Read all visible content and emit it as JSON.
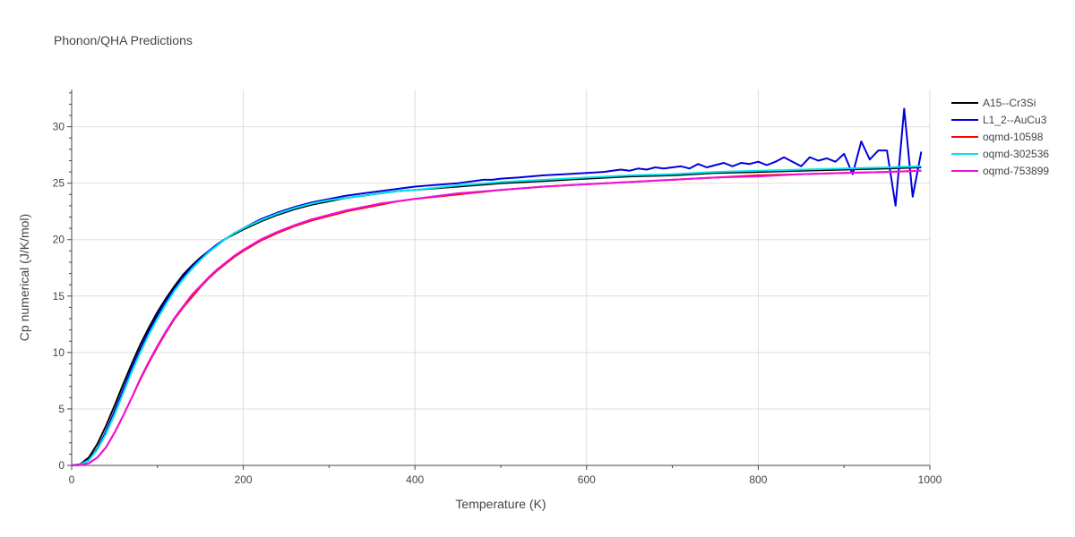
{
  "chart_data": {
    "type": "line",
    "title": "Phonon/QHA Predictions",
    "xlabel": "Temperature (K)",
    "ylabel": "Cp numerical (J/K/mol)",
    "xlim": [
      0,
      1000
    ],
    "ylim": [
      0,
      33.3
    ],
    "xticks": [
      0,
      200,
      400,
      600,
      800,
      1000
    ],
    "yticks": [
      0,
      5,
      10,
      15,
      20,
      25,
      30
    ],
    "grid": true,
    "legend_position": "top-right",
    "series": [
      {
        "name": "A15--Cr3Si",
        "color": "#000000",
        "x": [
          0,
          10,
          20,
          30,
          40,
          50,
          60,
          70,
          80,
          90,
          100,
          110,
          120,
          130,
          140,
          150,
          160,
          170,
          180,
          190,
          200,
          220,
          240,
          260,
          280,
          300,
          320,
          340,
          360,
          380,
          400,
          450,
          500,
          550,
          600,
          650,
          700,
          750,
          800,
          850,
          900,
          950,
          990
        ],
        "y": [
          0,
          0.1,
          0.7,
          1.9,
          3.5,
          5.3,
          7.2,
          9.0,
          10.7,
          12.2,
          13.6,
          14.8,
          15.9,
          16.9,
          17.7,
          18.4,
          19.0,
          19.6,
          20.1,
          20.5,
          20.9,
          21.6,
          22.2,
          22.7,
          23.1,
          23.4,
          23.7,
          23.9,
          24.1,
          24.3,
          24.4,
          24.7,
          25.0,
          25.2,
          25.4,
          25.6,
          25.7,
          25.9,
          26.0,
          26.1,
          26.2,
          26.3,
          26.4
        ]
      },
      {
        "name": "L1_2--AuCu3",
        "color": "#0000dd",
        "x": [
          0,
          10,
          20,
          30,
          40,
          50,
          60,
          70,
          80,
          90,
          100,
          110,
          120,
          130,
          140,
          150,
          160,
          170,
          180,
          190,
          200,
          220,
          240,
          260,
          280,
          300,
          320,
          340,
          360,
          380,
          400,
          450,
          480,
          490,
          500,
          520,
          550,
          600,
          620,
          630,
          640,
          650,
          660,
          670,
          680,
          690,
          700,
          710,
          720,
          730,
          740,
          750,
          760,
          770,
          780,
          790,
          800,
          810,
          820,
          830,
          840,
          850,
          860,
          870,
          880,
          890,
          900,
          910,
          920,
          930,
          940,
          950,
          960,
          970,
          980,
          990
        ],
        "y": [
          0,
          0.08,
          0.5,
          1.5,
          3.0,
          4.8,
          6.7,
          8.6,
          10.3,
          11.9,
          13.3,
          14.6,
          15.7,
          16.7,
          17.6,
          18.3,
          19.0,
          19.6,
          20.1,
          20.6,
          21.0,
          21.8,
          22.4,
          22.9,
          23.3,
          23.6,
          23.9,
          24.1,
          24.3,
          24.5,
          24.7,
          25.0,
          25.3,
          25.3,
          25.4,
          25.5,
          25.7,
          25.9,
          26.0,
          26.1,
          26.2,
          26.1,
          26.3,
          26.2,
          26.4,
          26.3,
          26.4,
          26.5,
          26.3,
          26.7,
          26.4,
          26.6,
          26.8,
          26.5,
          26.8,
          26.7,
          26.9,
          26.6,
          26.9,
          27.3,
          26.9,
          26.5,
          27.3,
          27.0,
          27.2,
          26.9,
          27.6,
          25.8,
          28.7,
          27.1,
          27.9,
          27.9,
          23.0,
          31.6,
          23.8,
          27.8
        ]
      },
      {
        "name": "oqmd-10598",
        "color": "#ff0000",
        "x": [
          0,
          10,
          20,
          30,
          40,
          50,
          60,
          70,
          80,
          90,
          100,
          110,
          120,
          130,
          140,
          150,
          160,
          170,
          180,
          190,
          200,
          220,
          240,
          260,
          280,
          300,
          320,
          340,
          360,
          380,
          400,
          450,
          500,
          550,
          600,
          650,
          700,
          750,
          800,
          850,
          900,
          950,
          990
        ],
        "y": [
          0,
          0.03,
          0.2,
          0.7,
          1.6,
          2.9,
          4.4,
          6.0,
          7.6,
          9.1,
          10.5,
          11.8,
          13.0,
          14.0,
          14.9,
          15.8,
          16.6,
          17.3,
          17.9,
          18.5,
          19.0,
          19.9,
          20.6,
          21.2,
          21.7,
          22.1,
          22.5,
          22.8,
          23.1,
          23.4,
          23.6,
          24.0,
          24.4,
          24.7,
          24.9,
          25.1,
          25.3,
          25.5,
          25.7,
          25.8,
          25.9,
          26.0,
          26.1
        ]
      },
      {
        "name": "oqmd-302536",
        "color": "#00e5ee",
        "x": [
          0,
          10,
          20,
          30,
          40,
          50,
          60,
          70,
          80,
          90,
          100,
          110,
          120,
          130,
          140,
          150,
          160,
          170,
          180,
          190,
          200,
          220,
          240,
          260,
          280,
          300,
          320,
          340,
          360,
          380,
          400,
          450,
          500,
          550,
          600,
          650,
          700,
          750,
          800,
          850,
          900,
          950,
          990
        ],
        "y": [
          0,
          0.06,
          0.45,
          1.4,
          2.8,
          4.5,
          6.4,
          8.3,
          10.0,
          11.6,
          13.0,
          14.3,
          15.5,
          16.5,
          17.4,
          18.2,
          18.9,
          19.5,
          20.1,
          20.6,
          21.0,
          21.7,
          22.3,
          22.8,
          23.2,
          23.5,
          23.7,
          23.9,
          24.1,
          24.3,
          24.4,
          24.8,
          25.1,
          25.3,
          25.5,
          25.7,
          25.8,
          26.0,
          26.1,
          26.2,
          26.3,
          26.4,
          26.5
        ]
      },
      {
        "name": "oqmd-753899",
        "color": "#ee11dd",
        "x": [
          0,
          10,
          20,
          30,
          40,
          50,
          60,
          70,
          80,
          90,
          100,
          110,
          120,
          130,
          140,
          150,
          160,
          170,
          180,
          190,
          200,
          220,
          240,
          260,
          280,
          300,
          320,
          340,
          360,
          380,
          400,
          450,
          500,
          550,
          600,
          650,
          700,
          750,
          800,
          850,
          900,
          950,
          990
        ],
        "y": [
          0,
          0.03,
          0.2,
          0.7,
          1.6,
          2.9,
          4.4,
          6.0,
          7.7,
          9.2,
          10.6,
          11.9,
          13.1,
          14.1,
          15.1,
          15.9,
          16.7,
          17.4,
          18.0,
          18.6,
          19.1,
          20.0,
          20.7,
          21.3,
          21.8,
          22.2,
          22.6,
          22.9,
          23.2,
          23.4,
          23.6,
          24.1,
          24.4,
          24.7,
          24.9,
          25.1,
          25.3,
          25.5,
          25.6,
          25.8,
          25.9,
          26.0,
          26.1
        ]
      }
    ]
  }
}
